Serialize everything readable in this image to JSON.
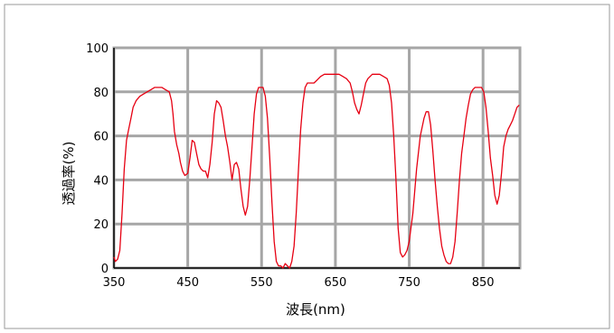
{
  "chart_data": {
    "type": "line",
    "title": "",
    "xlabel": "波長(nm)",
    "ylabel": "透過率(%)",
    "xlim": [
      350,
      900
    ],
    "ylim": [
      0,
      100
    ],
    "x_ticks": [
      350,
      450,
      550,
      650,
      750,
      850
    ],
    "y_ticks": [
      0,
      20,
      40,
      60,
      80,
      100
    ],
    "grid": true,
    "grid_color": "#a6a6a6",
    "line_color": "#e60012",
    "series": [
      {
        "x": [
          350,
          352,
          355,
          358,
          361,
          364,
          367,
          370,
          373,
          376,
          380,
          385,
          390,
          395,
          400,
          405,
          410,
          415,
          420,
          425,
          428,
          430,
          432,
          435,
          438,
          440,
          443,
          446,
          450,
          453,
          456,
          459,
          462,
          465,
          468,
          471,
          474,
          477,
          480,
          483,
          486,
          489,
          492,
          495,
          498,
          501,
          504,
          507,
          510,
          513,
          516,
          519,
          522,
          525,
          528,
          531,
          534,
          537,
          540,
          543,
          546,
          549,
          552,
          555,
          558,
          561,
          564,
          567,
          570,
          573,
          576,
          579,
          582,
          585,
          588,
          591,
          594,
          597,
          600,
          603,
          606,
          609,
          612,
          615,
          618,
          621,
          624,
          627,
          630,
          635,
          640,
          645,
          650,
          655,
          660,
          665,
          670,
          673,
          676,
          679,
          682,
          685,
          688,
          691,
          694,
          697,
          700,
          705,
          710,
          715,
          720,
          723,
          726,
          729,
          732,
          735,
          738,
          741,
          744,
          747,
          750,
          755,
          760,
          765,
          770,
          773,
          776,
          779,
          782,
          785,
          788,
          791,
          794,
          797,
          800,
          803,
          806,
          809,
          812,
          815,
          818,
          821,
          824,
          827,
          830,
          833,
          836,
          839,
          842,
          845,
          848,
          851,
          854,
          857,
          860,
          863,
          866,
          869,
          872,
          875,
          878,
          881,
          884,
          887,
          890,
          893,
          896,
          899
        ],
        "y": [
          5,
          3,
          4,
          8,
          25,
          45,
          58,
          63,
          68,
          73,
          76,
          78,
          79,
          80,
          81,
          82,
          82,
          82,
          81,
          80,
          76,
          70,
          62,
          56,
          52,
          48,
          44,
          42,
          43,
          50,
          58,
          57,
          52,
          47,
          45,
          44,
          44,
          41,
          47,
          57,
          70,
          76,
          75,
          73,
          67,
          60,
          55,
          48,
          40,
          47,
          48,
          45,
          36,
          28,
          24,
          28,
          40,
          55,
          70,
          79,
          82,
          82,
          82,
          78,
          68,
          50,
          30,
          12,
          3,
          1,
          1,
          0,
          2,
          1,
          0,
          3,
          10,
          25,
          45,
          63,
          75,
          82,
          84,
          84,
          84,
          84,
          85,
          86,
          87,
          88,
          88,
          88,
          88,
          88,
          87,
          86,
          84,
          80,
          75,
          72,
          70,
          74,
          79,
          84,
          86,
          87,
          88,
          88,
          88,
          87,
          86,
          83,
          75,
          60,
          40,
          18,
          7,
          5,
          6,
          8,
          12,
          25,
          45,
          60,
          68,
          71,
          71,
          65,
          53,
          40,
          28,
          18,
          10,
          6,
          3,
          2,
          2,
          5,
          12,
          25,
          40,
          52,
          60,
          68,
          74,
          79,
          81,
          82,
          82,
          82,
          82,
          80,
          73,
          62,
          50,
          42,
          33,
          29,
          33,
          43,
          55,
          60,
          63,
          65,
          67,
          70,
          73,
          74
        ]
      }
    ]
  }
}
